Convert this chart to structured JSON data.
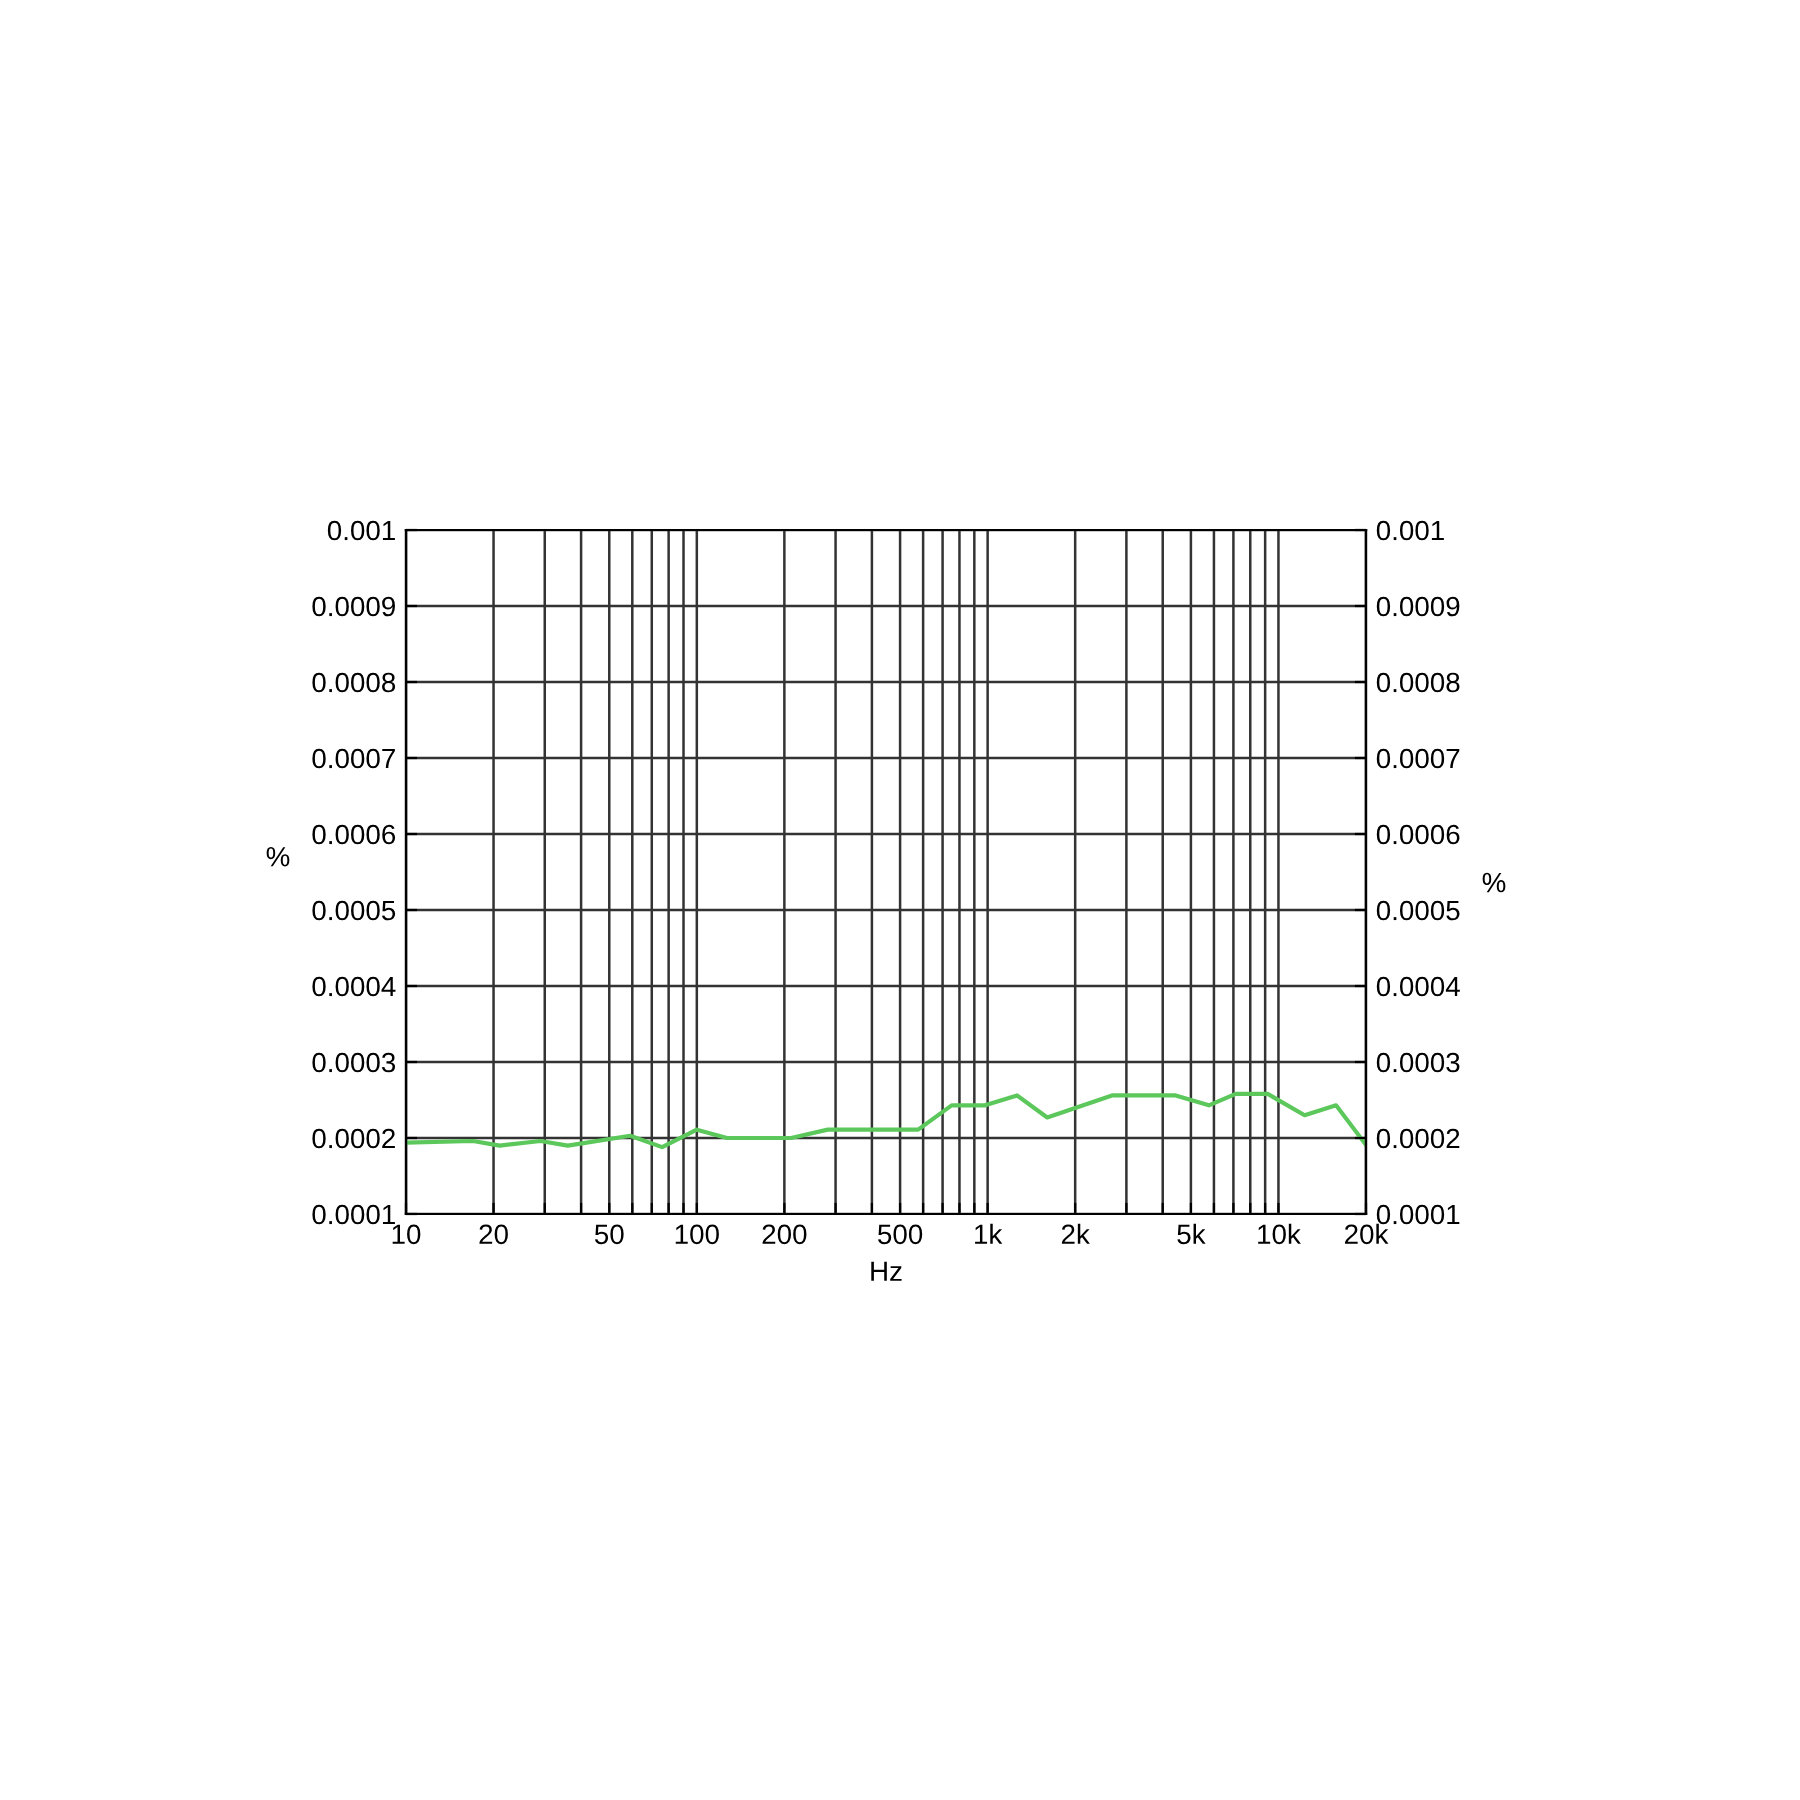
{
  "chart_data": {
    "type": "line",
    "xlabel": "Hz",
    "ylabel": "%",
    "y2label": "%",
    "log": "x",
    "grid": true,
    "marker": "none",
    "line_style": "solid",
    "x": [
      10,
      17,
      21,
      29,
      36,
      59,
      76,
      100,
      127,
      211,
      282,
      577,
      752,
      980,
      1262,
      1603,
      2677,
      4430,
      5765,
      7130,
      9180,
      12300,
      15780,
      20000
    ],
    "series": [
      {
        "color": "#5cc85c",
        "values": [
          0.000194,
          0.000196,
          0.00019,
          0.000196,
          0.00019,
          0.000203,
          0.000188,
          0.000211,
          0.0002,
          0.0002,
          0.000211,
          0.000211,
          0.000243,
          0.000243,
          0.000256,
          0.000227,
          0.000256,
          0.000256,
          0.000243,
          0.000258,
          0.000258,
          0.00023,
          0.000243,
          0.000191
        ]
      }
    ],
    "xlim": [
      10,
      20000
    ],
    "xticks": [
      10,
      {
        "value": 20,
        "label": "20"
      },
      {
        "value": 30,
        "label": null
      },
      {
        "value": 40,
        "label": null
      },
      50,
      {
        "value": 60,
        "label": null
      },
      {
        "value": 70,
        "label": null
      },
      {
        "value": 80,
        "label": null
      },
      {
        "value": 90,
        "label": null
      },
      100,
      200,
      {
        "value": 300,
        "label": null
      },
      {
        "value": 400,
        "label": null
      },
      500,
      {
        "value": 600,
        "label": null
      },
      {
        "value": 700,
        "label": null
      },
      {
        "value": 800,
        "label": null
      },
      {
        "value": 900,
        "label": null
      },
      {
        "value": 1000,
        "label": "1k"
      },
      {
        "value": 2000,
        "label": "2k"
      },
      {
        "value": 3000,
        "label": null
      },
      {
        "value": 4000,
        "label": null
      },
      {
        "value": 5000,
        "label": "5k"
      },
      {
        "value": 6000,
        "label": null
      },
      {
        "value": 7000,
        "label": null
      },
      {
        "value": 8000,
        "label": null
      },
      {
        "value": 9000,
        "label": null
      },
      {
        "value": 10000,
        "label": "10k"
      },
      {
        "value": 20000,
        "label": "20k"
      }
    ],
    "ylim": [
      0.0001,
      0.001
    ],
    "yticks": [
      0.0001,
      0.0002,
      0.0003,
      0.0004,
      0.0005,
      0.0006,
      0.0007,
      0.0008,
      0.0009,
      0.001
    ],
    "y2lim": [
      0.0001,
      0.001
    ],
    "y2ticks": [
      0.0001,
      0.0002,
      0.0003,
      0.0004,
      0.0005,
      0.0006,
      0.0007,
      0.0008,
      0.0009,
      0.001
    ]
  }
}
